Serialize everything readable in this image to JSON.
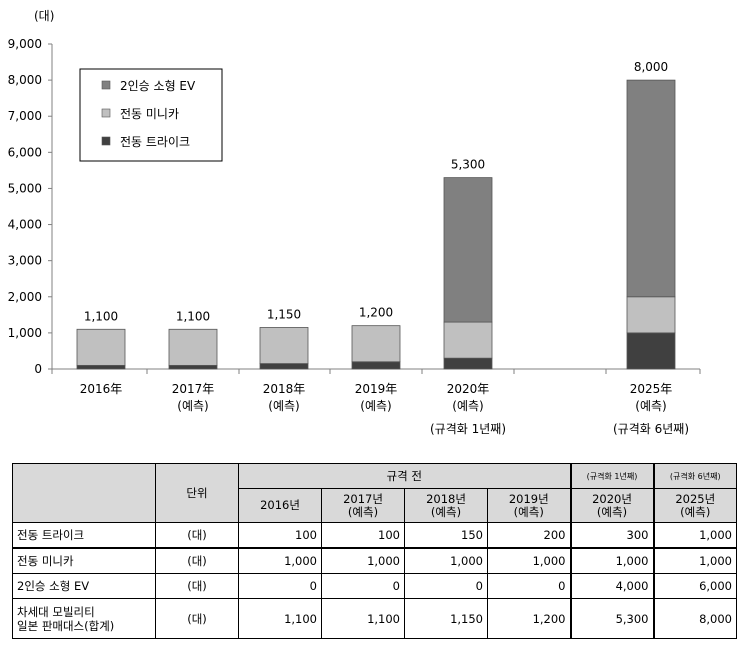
{
  "chart_data": {
    "type": "bar",
    "stacked": true,
    "unit_label": "(대)",
    "ylim": [
      0,
      9000
    ],
    "yticks": [
      "0",
      "1,000",
      "2,000",
      "3,000",
      "4,000",
      "5,000",
      "6,000",
      "7,000",
      "8,000",
      "9,000"
    ],
    "grid": false,
    "legend_position": "top-left",
    "categories": [
      {
        "year": "2016年",
        "note": ""
      },
      {
        "year": "2017年",
        "note": "(예측)"
      },
      {
        "year": "2018年",
        "note": "(예측)"
      },
      {
        "year": "2019年",
        "note": "(예측)"
      },
      {
        "year": "2020年",
        "note": "(예측)",
        "remark": "(규격화 1년째)"
      },
      {
        "year": "2025年",
        "note": "(예측)",
        "remark": "(규격화 6년째)"
      }
    ],
    "series": [
      {
        "name": "전동 트라이크",
        "color": "#404040",
        "values": [
          100,
          100,
          150,
          200,
          300,
          1000
        ]
      },
      {
        "name": "전동 미니카",
        "color": "#c0c0c0",
        "values": [
          1000,
          1000,
          1000,
          1000,
          1000,
          1000
        ]
      },
      {
        "name": "2인승 소형 EV",
        "color": "#808080",
        "values": [
          0,
          0,
          0,
          0,
          4000,
          6000
        ]
      }
    ],
    "totals": [
      "1,100",
      "1,100",
      "1,150",
      "1,200",
      "5,300",
      "8,000"
    ],
    "legend_order": [
      "2인승 소형 EV",
      "전동 미니카",
      "전동 트라이크"
    ]
  },
  "table": {
    "unit_header": "단위",
    "group_header": "규격 전",
    "remark_2020": "(규격화 1년째)",
    "remark_2025": "(규격화 6년째)",
    "years": [
      {
        "y": "2016년",
        "n": ""
      },
      {
        "y": "2017년",
        "n": "(예측)"
      },
      {
        "y": "2018년",
        "n": "(예측)"
      },
      {
        "y": "2019년",
        "n": "(예측)"
      },
      {
        "y": "2020년",
        "n": "(예측)"
      },
      {
        "y": "2025년",
        "n": "(예측)"
      }
    ],
    "rows": [
      {
        "label": "전동 트라이크",
        "unit": "(대)",
        "values": [
          "100",
          "100",
          "150",
          "200",
          "300",
          "1,000"
        ]
      },
      {
        "label": "전동 미니카",
        "unit": "(대)",
        "values": [
          "1,000",
          "1,000",
          "1,000",
          "1,000",
          "1,000",
          "1,000"
        ]
      },
      {
        "label": "2인승 소형 EV",
        "unit": "(대)",
        "values": [
          "0",
          "0",
          "0",
          "0",
          "4,000",
          "6,000"
        ]
      },
      {
        "label": "차세대 모빌리티\n일본 판매대스(합계)",
        "label_l1": "차세대 모빌리티",
        "label_l2": "일본 판매대스(합계)",
        "unit": "(대)",
        "values": [
          "1,100",
          "1,100",
          "1,150",
          "1,200",
          "5,300",
          "8,000"
        ]
      }
    ]
  }
}
